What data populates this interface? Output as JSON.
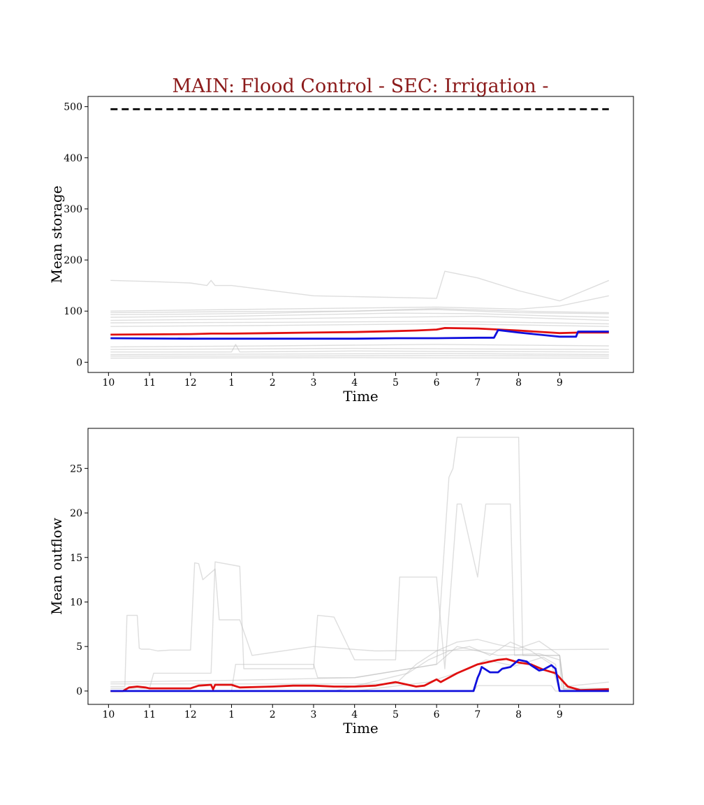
{
  "colors": {
    "title": "#8b1a1a",
    "main": "#1010dd",
    "secondary": "#e01010",
    "ensemble": "#bdbdbd",
    "capacity": "#000000"
  },
  "chart_data": [
    {
      "type": "line",
      "title": "MAIN: Flood Control - SEC: Irrigation -",
      "xlabel": "Time",
      "ylabel": "Mean storage",
      "x_range": [
        -0.5,
        12.8
      ],
      "ylim": [
        -20,
        520
      ],
      "yticks": [
        0,
        100,
        200,
        300,
        400,
        500
      ],
      "xticks": [
        {
          "label": "10",
          "x": 0
        },
        {
          "label": "11",
          "x": 1
        },
        {
          "label": "12",
          "x": 2
        },
        {
          "label": "1",
          "x": 3
        },
        {
          "label": "2",
          "x": 4
        },
        {
          "label": "3",
          "x": 5
        },
        {
          "label": "4",
          "x": 6
        },
        {
          "label": "5",
          "x": 7
        },
        {
          "label": "6",
          "x": 8
        },
        {
          "label": "7",
          "x": 9
        },
        {
          "label": "8",
          "x": 10
        },
        {
          "label": "9",
          "x": 11
        }
      ],
      "grid": false,
      "reference_lines": [
        {
          "style": "dashed",
          "x": [
            0.05,
            12.2
          ],
          "y": [
            495,
            495
          ]
        }
      ],
      "series": [
        {
          "role": "ensemble",
          "x": [
            0.05,
            1,
            2,
            2.4,
            2.5,
            2.6,
            3,
            5,
            8,
            8.2,
            9,
            10,
            11,
            12.2
          ],
          "y": [
            160,
            158,
            155,
            150,
            160,
            150,
            150,
            130,
            125,
            178,
            165,
            140,
            120,
            160
          ]
        },
        {
          "role": "ensemble",
          "x": [
            0.05,
            3,
            6,
            8,
            10,
            11,
            12.2
          ],
          "y": [
            100,
            103,
            106,
            108,
            104,
            110,
            130
          ]
        },
        {
          "role": "ensemble",
          "x": [
            0.05,
            3,
            6,
            8,
            10,
            12.2
          ],
          "y": [
            97,
            99,
            100,
            105,
            100,
            97
          ]
        },
        {
          "role": "ensemble",
          "x": [
            0.05,
            2,
            4,
            6,
            8,
            10,
            12.2
          ],
          "y": [
            93,
            94,
            96,
            100,
            103,
            97,
            95
          ]
        },
        {
          "role": "ensemble",
          "x": [
            0.05,
            3,
            5,
            7,
            9,
            11,
            12.2
          ],
          "y": [
            88,
            90,
            93,
            96,
            95,
            90,
            88
          ]
        },
        {
          "role": "ensemble",
          "x": [
            0.05,
            3,
            6,
            9,
            11,
            12.2
          ],
          "y": [
            82,
            84,
            87,
            90,
            85,
            82
          ]
        },
        {
          "role": "ensemble",
          "x": [
            0.05,
            4,
            8,
            10,
            12.2
          ],
          "y": [
            77,
            78,
            80,
            78,
            75
          ]
        },
        {
          "role": "ensemble",
          "x": [
            0.05,
            4,
            8,
            10,
            12.2
          ],
          "y": [
            70,
            72,
            75,
            73,
            70
          ]
        },
        {
          "role": "ensemble",
          "x": [
            0.05,
            4,
            8,
            12.2
          ],
          "y": [
            30,
            32,
            35,
            32
          ]
        },
        {
          "role": "ensemble",
          "x": [
            0.05,
            3,
            6,
            9,
            12.2
          ],
          "y": [
            25,
            26,
            27,
            26,
            25
          ]
        },
        {
          "role": "ensemble",
          "x": [
            0.05,
            3,
            3.1,
            3.2,
            6,
            9,
            12.2
          ],
          "y": [
            20,
            20,
            35,
            20,
            22,
            21,
            20
          ]
        },
        {
          "role": "ensemble",
          "x": [
            0.05,
            4,
            8,
            12.2
          ],
          "y": [
            15,
            16,
            17,
            15
          ]
        },
        {
          "role": "ensemble",
          "x": [
            0.05,
            4,
            8,
            12.2
          ],
          "y": [
            12,
            12,
            13,
            12
          ]
        },
        {
          "role": "ensemble",
          "x": [
            0.05,
            6,
            12.2
          ],
          "y": [
            8,
            9,
            8
          ]
        },
        {
          "role": "secondary",
          "x": [
            0.05,
            2,
            2.5,
            3,
            4,
            5,
            6,
            7,
            7.5,
            8,
            8.2,
            9,
            10,
            11,
            11.5,
            12.2
          ],
          "y": [
            54,
            55,
            56,
            56,
            57,
            58,
            59,
            61,
            62,
            64,
            67,
            66,
            62,
            57,
            58,
            58
          ]
        },
        {
          "role": "main",
          "x": [
            0.05,
            2,
            4,
            6,
            7,
            8,
            9,
            9.4,
            9.5,
            10,
            11,
            11.4,
            11.45,
            12.2
          ],
          "y": [
            47,
            46,
            46,
            46,
            47,
            47,
            48,
            48,
            63,
            58,
            50,
            50,
            60,
            60
          ]
        }
      ]
    },
    {
      "type": "line",
      "xlabel": "Time",
      "ylabel": "Mean outflow",
      "x_range": [
        -0.5,
        12.8
      ],
      "ylim": [
        -1.5,
        29.5
      ],
      "yticks": [
        0,
        5,
        10,
        15,
        20,
        25
      ],
      "xticks": [
        {
          "label": "10",
          "x": 0
        },
        {
          "label": "11",
          "x": 1
        },
        {
          "label": "12",
          "x": 2
        },
        {
          "label": "1",
          "x": 3
        },
        {
          "label": "2",
          "x": 4
        },
        {
          "label": "3",
          "x": 5
        },
        {
          "label": "4",
          "x": 6
        },
        {
          "label": "5",
          "x": 7
        },
        {
          "label": "6",
          "x": 8
        },
        {
          "label": "7",
          "x": 9
        },
        {
          "label": "8",
          "x": 10
        },
        {
          "label": "9",
          "x": 11
        }
      ],
      "grid": false,
      "series": [
        {
          "role": "ensemble",
          "x": [
            0.05,
            0.4,
            0.45,
            0.7,
            0.75,
            0.8,
            1.0,
            1.2,
            1.5,
            2.0,
            2.1,
            2.2,
            2.3,
            2.6,
            2.7,
            3.2,
            3.5,
            5.0,
            6.5,
            12.2
          ],
          "y": [
            0.5,
            0.5,
            8.5,
            8.5,
            4.8,
            4.7,
            4.7,
            4.5,
            4.6,
            4.6,
            14.4,
            14.3,
            12.5,
            13.7,
            8.0,
            8.0,
            4.0,
            5.0,
            4.5,
            4.7
          ]
        },
        {
          "role": "ensemble",
          "x": [
            0.05,
            1.0,
            1.1,
            2.5,
            2.6,
            3.2,
            3.3,
            5.0,
            5.1,
            5.5,
            6.0,
            7.0,
            7.1,
            8.0,
            8.2,
            8.5,
            8.6,
            9.0,
            9.2,
            9.8,
            9.9,
            11.0,
            11.1,
            12.2
          ],
          "y": [
            0.3,
            0.3,
            2.0,
            2.0,
            14.5,
            14.0,
            2.5,
            2.5,
            8.5,
            8.3,
            3.5,
            3.5,
            12.8,
            12.8,
            2.5,
            21.0,
            21.0,
            12.8,
            21.0,
            21.0,
            4.0,
            4.0,
            0.5,
            1.0
          ]
        },
        {
          "role": "ensemble",
          "x": [
            0.05,
            3.0,
            3.1,
            5.0,
            5.1,
            6.0,
            8.0,
            8.3,
            8.4,
            8.5,
            8.6,
            9.4,
            9.5,
            10.0,
            10.1,
            11.0,
            11.1,
            12.2
          ],
          "y": [
            0,
            0,
            3.0,
            3.0,
            1.5,
            1.5,
            3.0,
            24.0,
            25.0,
            28.5,
            28.5,
            28.5,
            28.5,
            28.5,
            4.0,
            4.0,
            0.2,
            0.2
          ]
        },
        {
          "role": "ensemble",
          "x": [
            0.05,
            4.0,
            7.0,
            7.5,
            8.0,
            8.5,
            9.0,
            9.5,
            10.0,
            10.5,
            11.0,
            11.1,
            12.2
          ],
          "y": [
            0.8,
            0.8,
            0.8,
            3.0,
            4.5,
            5.5,
            5.8,
            5.2,
            4.8,
            5.6,
            4.0,
            0.1,
            0.1
          ]
        },
        {
          "role": "ensemble",
          "x": [
            0.05,
            5.5,
            7.3,
            7.8,
            8.3,
            8.8,
            9.3,
            9.8,
            10.3,
            10.8,
            11.0,
            12.2
          ],
          "y": [
            0,
            0,
            2.0,
            3.5,
            4.5,
            5.0,
            4.0,
            5.5,
            4.5,
            3.0,
            0,
            0
          ]
        },
        {
          "role": "ensemble",
          "x": [
            0.05,
            3.0,
            6.0,
            8.0,
            8.5,
            9.5,
            10.5,
            11.0,
            11.05,
            12.2
          ],
          "y": [
            1.0,
            1.2,
            1.5,
            3.0,
            5.0,
            4.0,
            4.2,
            3.5,
            0.3,
            0.3
          ]
        },
        {
          "role": "ensemble",
          "x": [
            0.05,
            6.0,
            7.8,
            8.8,
            9.2,
            9.9,
            10.6,
            10.9,
            11.0,
            12.2
          ],
          "y": [
            0,
            0,
            1.0,
            2.5,
            3.5,
            2.8,
            3.8,
            3.0,
            0,
            0
          ]
        },
        {
          "role": "ensemble",
          "x": [
            0.05,
            8.9,
            9.0,
            10.8,
            10.9,
            12.2
          ],
          "y": [
            0,
            0,
            0.6,
            0.6,
            0,
            0
          ]
        },
        {
          "role": "secondary",
          "x": [
            0.05,
            0.35,
            0.5,
            0.7,
            0.9,
            1.0,
            1.5,
            2.0,
            2.2,
            2.5,
            2.55,
            2.6,
            3.0,
            3.2,
            4.0,
            4.5,
            5.0,
            5.5,
            6.0,
            6.5,
            7.0,
            7.5,
            7.7,
            8.0,
            8.1,
            8.5,
            9.0,
            9.5,
            9.7,
            10.0,
            10.3,
            10.6,
            10.9,
            11.0,
            11.2,
            11.5,
            12.2
          ],
          "y": [
            0,
            0,
            0.4,
            0.5,
            0.4,
            0.3,
            0.3,
            0.3,
            0.6,
            0.7,
            0.2,
            0.7,
            0.7,
            0.4,
            0.5,
            0.6,
            0.6,
            0.5,
            0.5,
            0.6,
            1.0,
            0.5,
            0.6,
            1.3,
            1.0,
            2.0,
            3.0,
            3.5,
            3.6,
            3.2,
            3.0,
            2.4,
            2.0,
            1.5,
            0.5,
            0.1,
            0.2
          ]
        },
        {
          "role": "main",
          "x": [
            0.05,
            8.9,
            9.0,
            9.05,
            9.1,
            9.3,
            9.5,
            9.6,
            9.8,
            10.0,
            10.2,
            10.3,
            10.5,
            10.6,
            10.8,
            10.9,
            11.0,
            12.2
          ],
          "y": [
            0,
            0,
            1.5,
            2.0,
            2.7,
            2.1,
            2.1,
            2.5,
            2.7,
            3.5,
            3.3,
            2.9,
            2.3,
            2.4,
            2.9,
            2.5,
            0.0,
            0.0
          ]
        }
      ]
    }
  ]
}
